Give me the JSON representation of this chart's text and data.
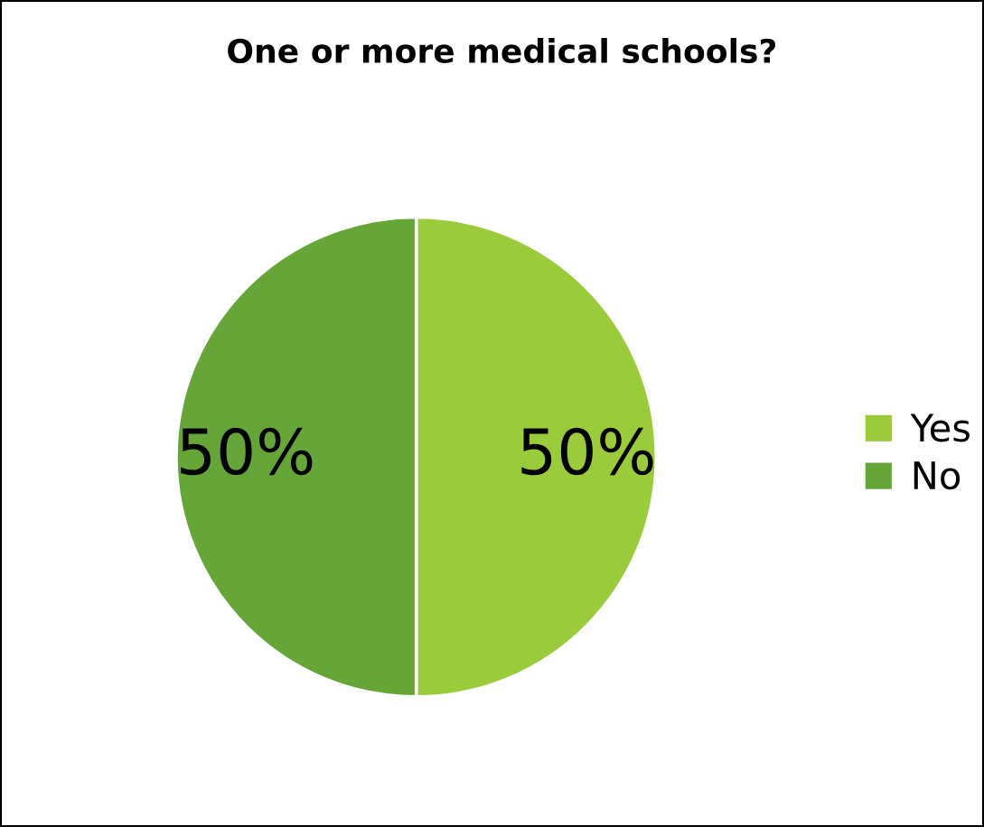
{
  "chart_data": {
    "type": "pie",
    "title": "One or more medical schools?",
    "categories": [
      "Yes",
      "No"
    ],
    "values": [
      50,
      50
    ],
    "colors": [
      "#9acb3b",
      "#66a638"
    ],
    "value_labels": [
      "50%",
      "50%"
    ],
    "legend": "right"
  }
}
